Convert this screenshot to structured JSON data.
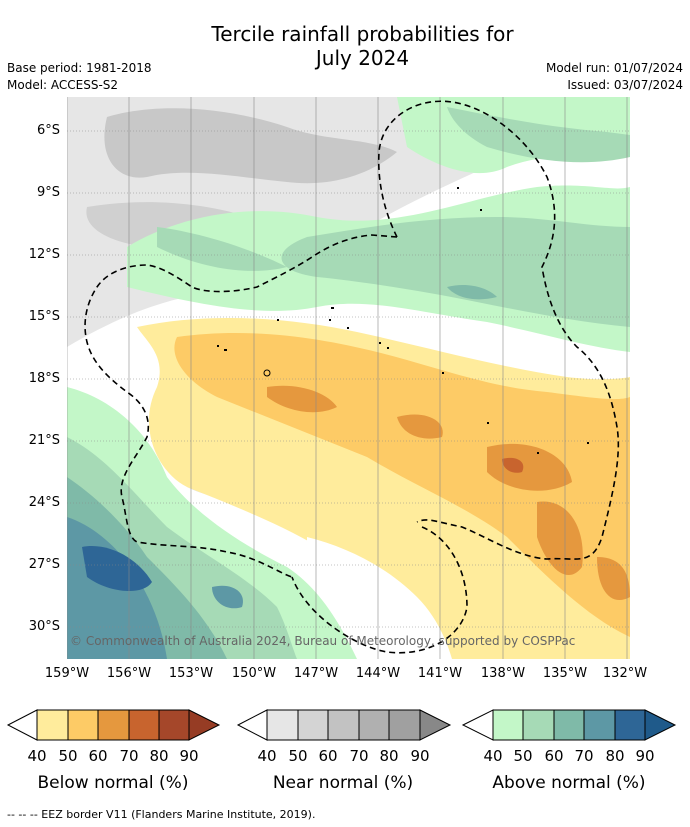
{
  "title_line1": "Tercile rainfall probabilities for",
  "title_line2": "July 2024",
  "base_period": "Base period: 1981-2018",
  "model": "Model: ACCESS-S2",
  "model_run": "Model run: 01/07/2024",
  "issued": "Issued: 03/07/2024",
  "copyright": "© Commonwealth of Australia 2024, Bureau of Meteorology, supported by COSPPac",
  "lat_labels": [
    "6°S",
    "9°S",
    "12°S",
    "15°S",
    "18°S",
    "21°S",
    "24°S",
    "27°S",
    "30°S"
  ],
  "lon_labels": [
    "159°W",
    "156°W",
    "153°W",
    "150°W",
    "147°W",
    "144°W",
    "141°W",
    "138°W",
    "135°W",
    "132°W"
  ],
  "legend": {
    "ticks": [
      "40",
      "50",
      "60",
      "70",
      "80",
      "90"
    ],
    "below": {
      "label": "Below normal (%)",
      "colors": [
        "#ffec9c",
        "#fdcb66",
        "#e5983e",
        "#c8642e",
        "#a5472a",
        "#963c24"
      ]
    },
    "near": {
      "label": "Near normal (%)",
      "colors": [
        "#e6e6e6",
        "#d4d4d4",
        "#c2c2c2",
        "#b0b0b0",
        "#a0a0a0",
        "#888888"
      ]
    },
    "above": {
      "label": "Above normal (%)",
      "colors": [
        "#c3f7c8",
        "#a6dab6",
        "#7fbaa8",
        "#5d98a5",
        "#2e6696",
        "#1f5a8a"
      ]
    }
  },
  "footnote": "--  --  -- EEZ border V11 (Flanders Marine Institute, 2019)."
}
